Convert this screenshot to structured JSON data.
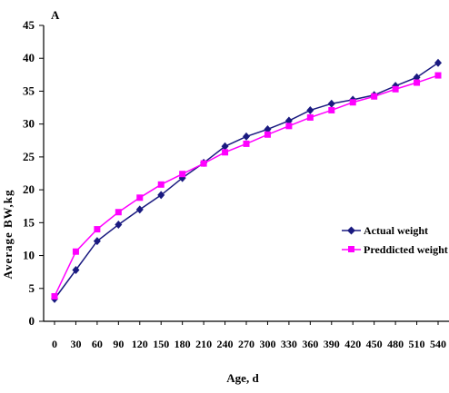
{
  "chart_data": {
    "type": "line",
    "panel_label": "A",
    "title": "",
    "xlabel": "Age, d",
    "ylabel": "Average BW,kg",
    "x": [
      0,
      30,
      60,
      90,
      120,
      150,
      180,
      210,
      240,
      270,
      300,
      330,
      360,
      390,
      420,
      450,
      480,
      510,
      540
    ],
    "xtick_labels": [
      "0",
      "30",
      "60",
      "90",
      "120",
      "150",
      "180",
      "210",
      "240",
      "270",
      "300",
      "330",
      "360",
      "390",
      "420",
      "450",
      "480",
      "510",
      "540"
    ],
    "yticks": [
      "0",
      "5",
      "10",
      "15",
      "20",
      "25",
      "30",
      "35",
      "40",
      "45"
    ],
    "ylim": [
      0,
      45
    ],
    "grid": false,
    "legend_position": "right",
    "series": [
      {
        "name": "Actual weight",
        "color": "#1a1a80",
        "marker": "diamond",
        "values": [
          3.4,
          7.8,
          12.2,
          14.7,
          17.0,
          19.2,
          21.8,
          24.1,
          26.6,
          28.1,
          29.2,
          30.5,
          32.1,
          33.1,
          33.7,
          34.4,
          35.8,
          37.1,
          39.3
        ]
      },
      {
        "name": "Preddicted weight",
        "color": "#ff00ff",
        "marker": "square",
        "values": [
          3.8,
          10.6,
          14.0,
          16.6,
          18.8,
          20.8,
          22.4,
          24.0,
          25.7,
          27.0,
          28.4,
          29.7,
          31.0,
          32.1,
          33.3,
          34.2,
          35.3,
          36.3,
          37.4
        ]
      }
    ]
  }
}
